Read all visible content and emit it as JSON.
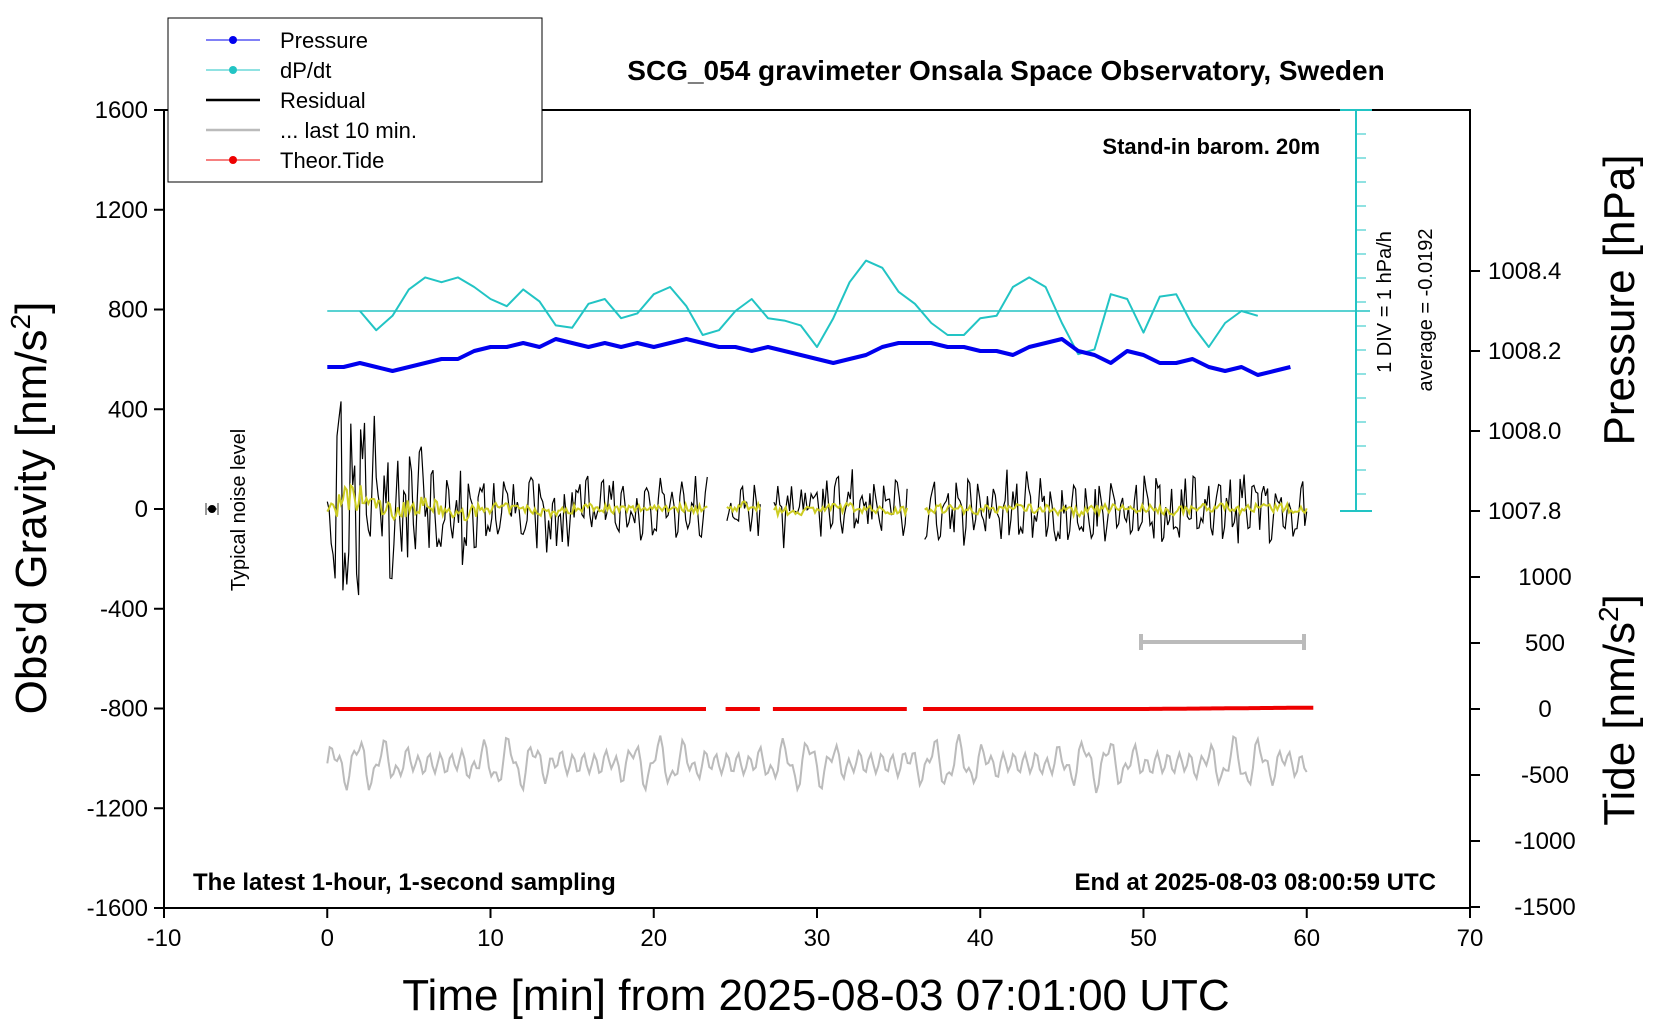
{
  "chart_data": {
    "type": "line",
    "title": "SCG_054 gravimeter Onsala Space Observatory, Sweden",
    "xlabel": "Time [min] from 2025-08-03 07:01:00 UTC",
    "ylabel_left": "Obs'd Gravity [nm/s",
    "ylabel_right_top": "Pressure [hPa]",
    "ylabel_right_bottom": "Tide [nm/s",
    "superscript": "2",
    "xlim": [
      -10,
      70
    ],
    "ylim": [
      -1600,
      1600
    ],
    "x_ticks": [
      "-10",
      "0",
      "10",
      "20",
      "30",
      "40",
      "50",
      "60",
      "70"
    ],
    "y_ticks": [
      "1600",
      "1200",
      "800",
      "400",
      "0",
      "-400",
      "-800",
      "-1200",
      "-1600"
    ],
    "pressure_axis": {
      "ticks": [
        "1008.4",
        "1008.2",
        "1008.0",
        "1007.8"
      ],
      "values": [
        1008.4,
        1008.2,
        1008.0,
        1007.8
      ]
    },
    "tide_axis": {
      "ticks": [
        "1000",
        "500",
        "0",
        "-500",
        "-1000",
        "-1500"
      ],
      "values": [
        1000,
        500,
        0,
        -500,
        -1000,
        -1500
      ]
    },
    "legend": {
      "position": "top-left",
      "entries": [
        {
          "label": "Pressure",
          "color": "#0000ee",
          "marker": "dot"
        },
        {
          "label": "dP/dt",
          "color": "#22c4c4",
          "marker": "dot"
        },
        {
          "label": "Residual",
          "color": "#000000",
          "marker": "line"
        },
        {
          "label": "... last 10 min.",
          "color": "#bbbbbb",
          "marker": "line"
        },
        {
          "label": "Theor.Tide",
          "color": "#ee0000",
          "marker": "dot"
        }
      ]
    },
    "annotations": {
      "stand_in": "Stand-in barom. 20m",
      "div_scale": "1 DIV = 1 hPa/h",
      "average": "average = -0.0192",
      "noise": "Typical noise level",
      "bottom_left": "The latest 1-hour, 1-second sampling",
      "bottom_right": "End at 2025-08-03 08:00:59 UTC"
    },
    "series": [
      {
        "name": "Pressure",
        "unit": "hPa",
        "x": [
          0,
          1,
          2,
          3,
          4,
          5,
          6,
          7,
          8,
          9,
          10,
          11,
          12,
          13,
          14,
          15,
          16,
          17,
          18,
          19,
          20,
          21,
          22,
          23,
          24,
          25,
          26,
          27,
          28,
          29,
          30,
          31,
          32,
          33,
          34,
          35,
          36,
          37,
          38,
          39,
          40,
          41,
          42,
          43,
          44,
          45,
          46,
          47,
          48,
          49,
          50,
          51,
          52,
          53,
          54,
          55,
          56,
          57,
          58,
          59,
          60
        ],
        "values": [
          1008.16,
          1008.16,
          1008.17,
          1008.16,
          1008.15,
          1008.16,
          1008.17,
          1008.18,
          1008.18,
          1008.2,
          1008.21,
          1008.21,
          1008.22,
          1008.21,
          1008.23,
          1008.22,
          1008.21,
          1008.22,
          1008.21,
          1008.22,
          1008.21,
          1008.22,
          1008.23,
          1008.22,
          1008.21,
          1008.21,
          1008.2,
          1008.21,
          1008.2,
          1008.19,
          1008.18,
          1008.17,
          1008.18,
          1008.19,
          1008.21,
          1008.22,
          1008.22,
          1008.22,
          1008.21,
          1008.21,
          1008.2,
          1008.2,
          1008.19,
          1008.21,
          1008.22,
          1008.23,
          1008.2,
          1008.19,
          1008.17,
          1008.2,
          1008.19,
          1008.17,
          1008.17,
          1008.18,
          1008.16,
          1008.15,
          1008.16,
          1008.14,
          1008.15,
          1008.16,
          null
        ]
      },
      {
        "name": "dP/dt",
        "unit": "hPa/h",
        "x": [
          0,
          1,
          2,
          3,
          4,
          5,
          6,
          7,
          8,
          9,
          10,
          11,
          12,
          13,
          14,
          15,
          16,
          17,
          18,
          19,
          20,
          21,
          22,
          23,
          24,
          25,
          26,
          27,
          28,
          29,
          30,
          31,
          32,
          33,
          34,
          35,
          36,
          37,
          38,
          39,
          40,
          41,
          42,
          43,
          44,
          45,
          46,
          47,
          48,
          49,
          50,
          51,
          52,
          53,
          54,
          55,
          56,
          57,
          58
        ],
        "values": [
          null,
          null,
          0.0,
          -0.8,
          -0.2,
          0.9,
          1.4,
          1.2,
          1.4,
          1.0,
          0.5,
          0.2,
          0.9,
          0.4,
          -0.6,
          -0.7,
          0.3,
          0.5,
          -0.3,
          -0.1,
          0.7,
          1.0,
          0.2,
          -1.0,
          -0.8,
          0.0,
          0.5,
          -0.3,
          -0.4,
          -0.6,
          -1.5,
          -0.3,
          1.2,
          2.1,
          1.8,
          0.8,
          0.3,
          -0.5,
          -1.0,
          -1.0,
          -0.3,
          -0.2,
          1.0,
          1.4,
          1.0,
          -0.5,
          -1.8,
          -1.6,
          0.7,
          0.5,
          -0.9,
          0.6,
          0.7,
          -0.6,
          -1.5,
          -0.5,
          0.0,
          -0.2,
          null
        ]
      },
      {
        "name": "Residual",
        "unit": "nm/s2",
        "x": [
          0,
          2,
          4,
          6,
          8,
          10,
          12,
          14,
          16,
          18,
          20,
          22,
          24,
          26,
          28,
          30,
          32,
          34,
          36,
          38,
          40,
          42,
          44,
          46,
          48,
          50,
          52,
          54,
          56,
          58,
          60
        ],
        "values": [
          0,
          100,
          -30,
          50,
          -70,
          20,
          0,
          -40,
          30,
          -10,
          20,
          10,
          0,
          40,
          -30,
          0,
          20,
          -20,
          0,
          10,
          -10,
          20,
          0,
          -30,
          10,
          0,
          -20,
          20,
          0,
          10,
          0
        ]
      },
      {
        "name": "Theor.Tide",
        "unit": "nm/s2",
        "x": [
          0,
          10,
          20,
          30,
          40,
          50,
          60
        ],
        "values": [
          0,
          0,
          0,
          0,
          0,
          0,
          10
        ]
      }
    ]
  }
}
